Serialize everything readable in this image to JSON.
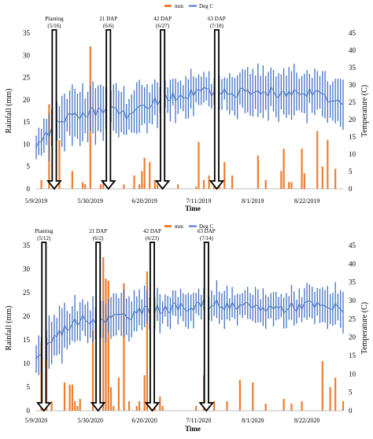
{
  "colors": {
    "rain": "#ED7D31",
    "temp": "#4472C4",
    "axis": "#7f7f7f",
    "arrow": "#000000"
  },
  "chart_data": [
    {
      "type": "bar+line",
      "year": 2019,
      "legend": [
        "mm",
        "Deg C"
      ],
      "legend_position": "top-right",
      "xlabel": "Time",
      "ylabel_left": "Rainfall (mm)",
      "ylabel_right": "Temperature (C)",
      "ylim_left": [
        0,
        35
      ],
      "ylim_right": [
        0,
        45
      ],
      "yticks_left": [
        "0",
        "5",
        "10",
        "15",
        "20",
        "25",
        "30",
        "35"
      ],
      "yticks_right": [
        "0",
        "5",
        "10",
        "15",
        "20",
        "25",
        "30",
        "35",
        "40",
        "45"
      ],
      "xticks": [
        "5/9/2019",
        "5/30/2019",
        "6/20/2019",
        "7/11/2019",
        "8/1/2019",
        "8/22/2019"
      ],
      "xdays": [
        0,
        21,
        42,
        63,
        84,
        105
      ],
      "day_range": [
        0,
        119
      ],
      "annotations": [
        {
          "label": "Planting",
          "date": "(5/16)",
          "day": 7
        },
        {
          "label": "21 DAP",
          "date": "(6/6)",
          "day": 28
        },
        {
          "label": "42 DAP",
          "date": "(6/27)",
          "day": 49
        },
        {
          "label": "63 DAP",
          "date": "(7/18)",
          "day": 70
        }
      ],
      "rain_days": [
        2,
        5,
        9,
        14,
        18,
        19,
        21,
        25,
        26,
        28,
        34,
        38,
        40,
        41,
        42,
        44,
        46,
        47,
        49,
        55,
        62,
        63,
        65,
        67,
        69,
        71,
        73,
        76,
        86,
        89,
        95,
        96,
        98,
        99,
        103,
        104,
        109,
        111,
        113,
        116
      ],
      "rain_mm": [
        2,
        19,
        11,
        4,
        1.5,
        1,
        32,
        1,
        2,
        2.5,
        1,
        3,
        1,
        4,
        7,
        6,
        2,
        1,
        3,
        1,
        0.5,
        10.5,
        2,
        3,
        1,
        0.5,
        6,
        3,
        7.5,
        2,
        4,
        9,
        1.5,
        1.5,
        9,
        3.5,
        13,
        5,
        11,
        4.5
      ],
      "temp_dayrange_C": [
        0,
        119
      ],
      "temp_anchors_day": [
        0,
        7,
        14,
        21,
        28,
        35,
        42,
        49,
        56,
        63,
        70,
        77,
        84,
        91,
        98,
        105,
        112,
        119
      ],
      "temp_mean_C": [
        12,
        18,
        21,
        22,
        23,
        21,
        24,
        26,
        27,
        28,
        28,
        28,
        27,
        28,
        27,
        28,
        27,
        24
      ],
      "temp_amp_C": [
        4,
        6,
        7,
        7,
        6,
        6,
        6,
        5,
        5,
        5,
        4,
        5,
        6,
        6,
        6,
        6,
        6,
        6
      ]
    },
    {
      "type": "bar+line",
      "year": 2020,
      "legend": [
        "mm",
        "Deg C"
      ],
      "legend_position": "top-right",
      "xlabel": "Time",
      "ylabel_left": "Rainfall (mm)",
      "ylabel_right": "Temperature (C)",
      "ylim_left": [
        0,
        35
      ],
      "ylim_right": [
        0,
        45
      ],
      "yticks_left": [
        "0",
        "5",
        "10",
        "15",
        "20",
        "25",
        "30",
        "35"
      ],
      "yticks_right": [
        "0",
        "5",
        "10",
        "15",
        "20",
        "25",
        "30",
        "35",
        "40",
        "45"
      ],
      "xticks": [
        "5/9/2020",
        "5/30/2020",
        "6/20/2020",
        "7/11/2020",
        "8/1/2020",
        "8/22/2020"
      ],
      "xdays": [
        0,
        21,
        42,
        63,
        84,
        105
      ],
      "day_range": [
        0,
        119
      ],
      "annotations": [
        {
          "label": "Planting",
          "date": "(5/12)",
          "day": 3
        },
        {
          "label": "21 DAP",
          "date": "(6/2)",
          "day": 24
        },
        {
          "label": "42 DAP",
          "date": "(6/23)",
          "day": 45
        },
        {
          "label": "63 DAP",
          "date": "(7/14)",
          "day": 66
        }
      ],
      "rain_days": [
        2,
        4,
        6,
        11,
        13,
        14,
        15,
        16,
        17,
        22,
        26,
        27,
        28,
        29,
        30,
        32,
        34,
        36,
        39,
        40,
        42,
        43,
        46,
        48,
        49,
        62,
        65,
        66,
        69,
        74,
        79,
        84,
        89,
        96,
        99,
        103,
        111,
        114,
        116,
        119
      ],
      "rain_mm": [
        14.5,
        15.5,
        2,
        6,
        5.5,
        5.5,
        2,
        1,
        2.5,
        17,
        32.5,
        28,
        27.5,
        5,
        1,
        7,
        27,
        2,
        1,
        2,
        7.5,
        29.5,
        1,
        3,
        1,
        1,
        7.5,
        22,
        2,
        2,
        6.5,
        6,
        1.5,
        2.5,
        1.5,
        2,
        10.5,
        5,
        7,
        2
      ],
      "temp_anchors_day": [
        0,
        7,
        14,
        21,
        28,
        35,
        42,
        49,
        56,
        63,
        70,
        77,
        84,
        91,
        98,
        105,
        112,
        119
      ],
      "temp_mean_C": [
        14,
        20,
        24,
        25,
        25,
        26,
        27,
        28,
        28,
        29,
        29,
        28,
        28,
        28,
        28,
        29,
        28,
        28
      ],
      "temp_amp_C": [
        5,
        6,
        6,
        5,
        5,
        5,
        5,
        4,
        4,
        4,
        4,
        4,
        4,
        4,
        4,
        4,
        5,
        5
      ]
    }
  ]
}
